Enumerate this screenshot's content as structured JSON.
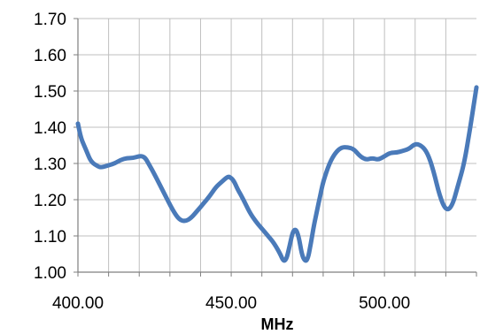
{
  "chart_data": {
    "type": "line",
    "title": "",
    "xlabel": "MHz",
    "ylabel": "",
    "xlim": [
      400,
      530
    ],
    "ylim": [
      1.0,
      1.7
    ],
    "x_ticks": [
      400,
      450,
      500
    ],
    "x_tick_labels": [
      "400.00",
      "450.00",
      "500.00"
    ],
    "y_ticks": [
      1.0,
      1.1,
      1.2,
      1.3,
      1.4,
      1.5,
      1.6,
      1.7
    ],
    "y_tick_labels": [
      "1.00",
      "1.10",
      "1.20",
      "1.30",
      "1.40",
      "1.50",
      "1.60",
      "1.70"
    ],
    "grid": true,
    "legend": "none",
    "line_color": "#4a7ab9",
    "series": [
      {
        "x": [
          400,
          401,
          402,
          403,
          404,
          405,
          406,
          407,
          408,
          410,
          412,
          414,
          416,
          418,
          420,
          421,
          422,
          423,
          425,
          428,
          431,
          433,
          435,
          437,
          439,
          441,
          443,
          445,
          447,
          449,
          450,
          451,
          452,
          454,
          456,
          458,
          460,
          462,
          464,
          466,
          467,
          468,
          469,
          470,
          471,
          472,
          473,
          474,
          475,
          476,
          477,
          478,
          479,
          480,
          482,
          484,
          486,
          488,
          490,
          492,
          494,
          496,
          498,
          500,
          502,
          504,
          506,
          508,
          510,
          512,
          514,
          516,
          518,
          520,
          522,
          524,
          526,
          528,
          530
        ],
        "y": [
          1.41,
          1.37,
          1.35,
          1.33,
          1.31,
          1.3,
          1.295,
          1.29,
          1.29,
          1.295,
          1.3,
          1.31,
          1.315,
          1.315,
          1.32,
          1.32,
          1.315,
          1.3,
          1.27,
          1.22,
          1.17,
          1.145,
          1.14,
          1.15,
          1.17,
          1.19,
          1.21,
          1.235,
          1.25,
          1.265,
          1.26,
          1.25,
          1.23,
          1.2,
          1.165,
          1.14,
          1.12,
          1.1,
          1.08,
          1.05,
          1.03,
          1.035,
          1.07,
          1.11,
          1.12,
          1.1,
          1.05,
          1.03,
          1.035,
          1.08,
          1.13,
          1.17,
          1.21,
          1.25,
          1.3,
          1.33,
          1.345,
          1.345,
          1.34,
          1.32,
          1.31,
          1.315,
          1.31,
          1.32,
          1.33,
          1.33,
          1.335,
          1.34,
          1.355,
          1.35,
          1.33,
          1.28,
          1.21,
          1.17,
          1.18,
          1.24,
          1.3,
          1.4,
          1.51
        ]
      }
    ]
  }
}
